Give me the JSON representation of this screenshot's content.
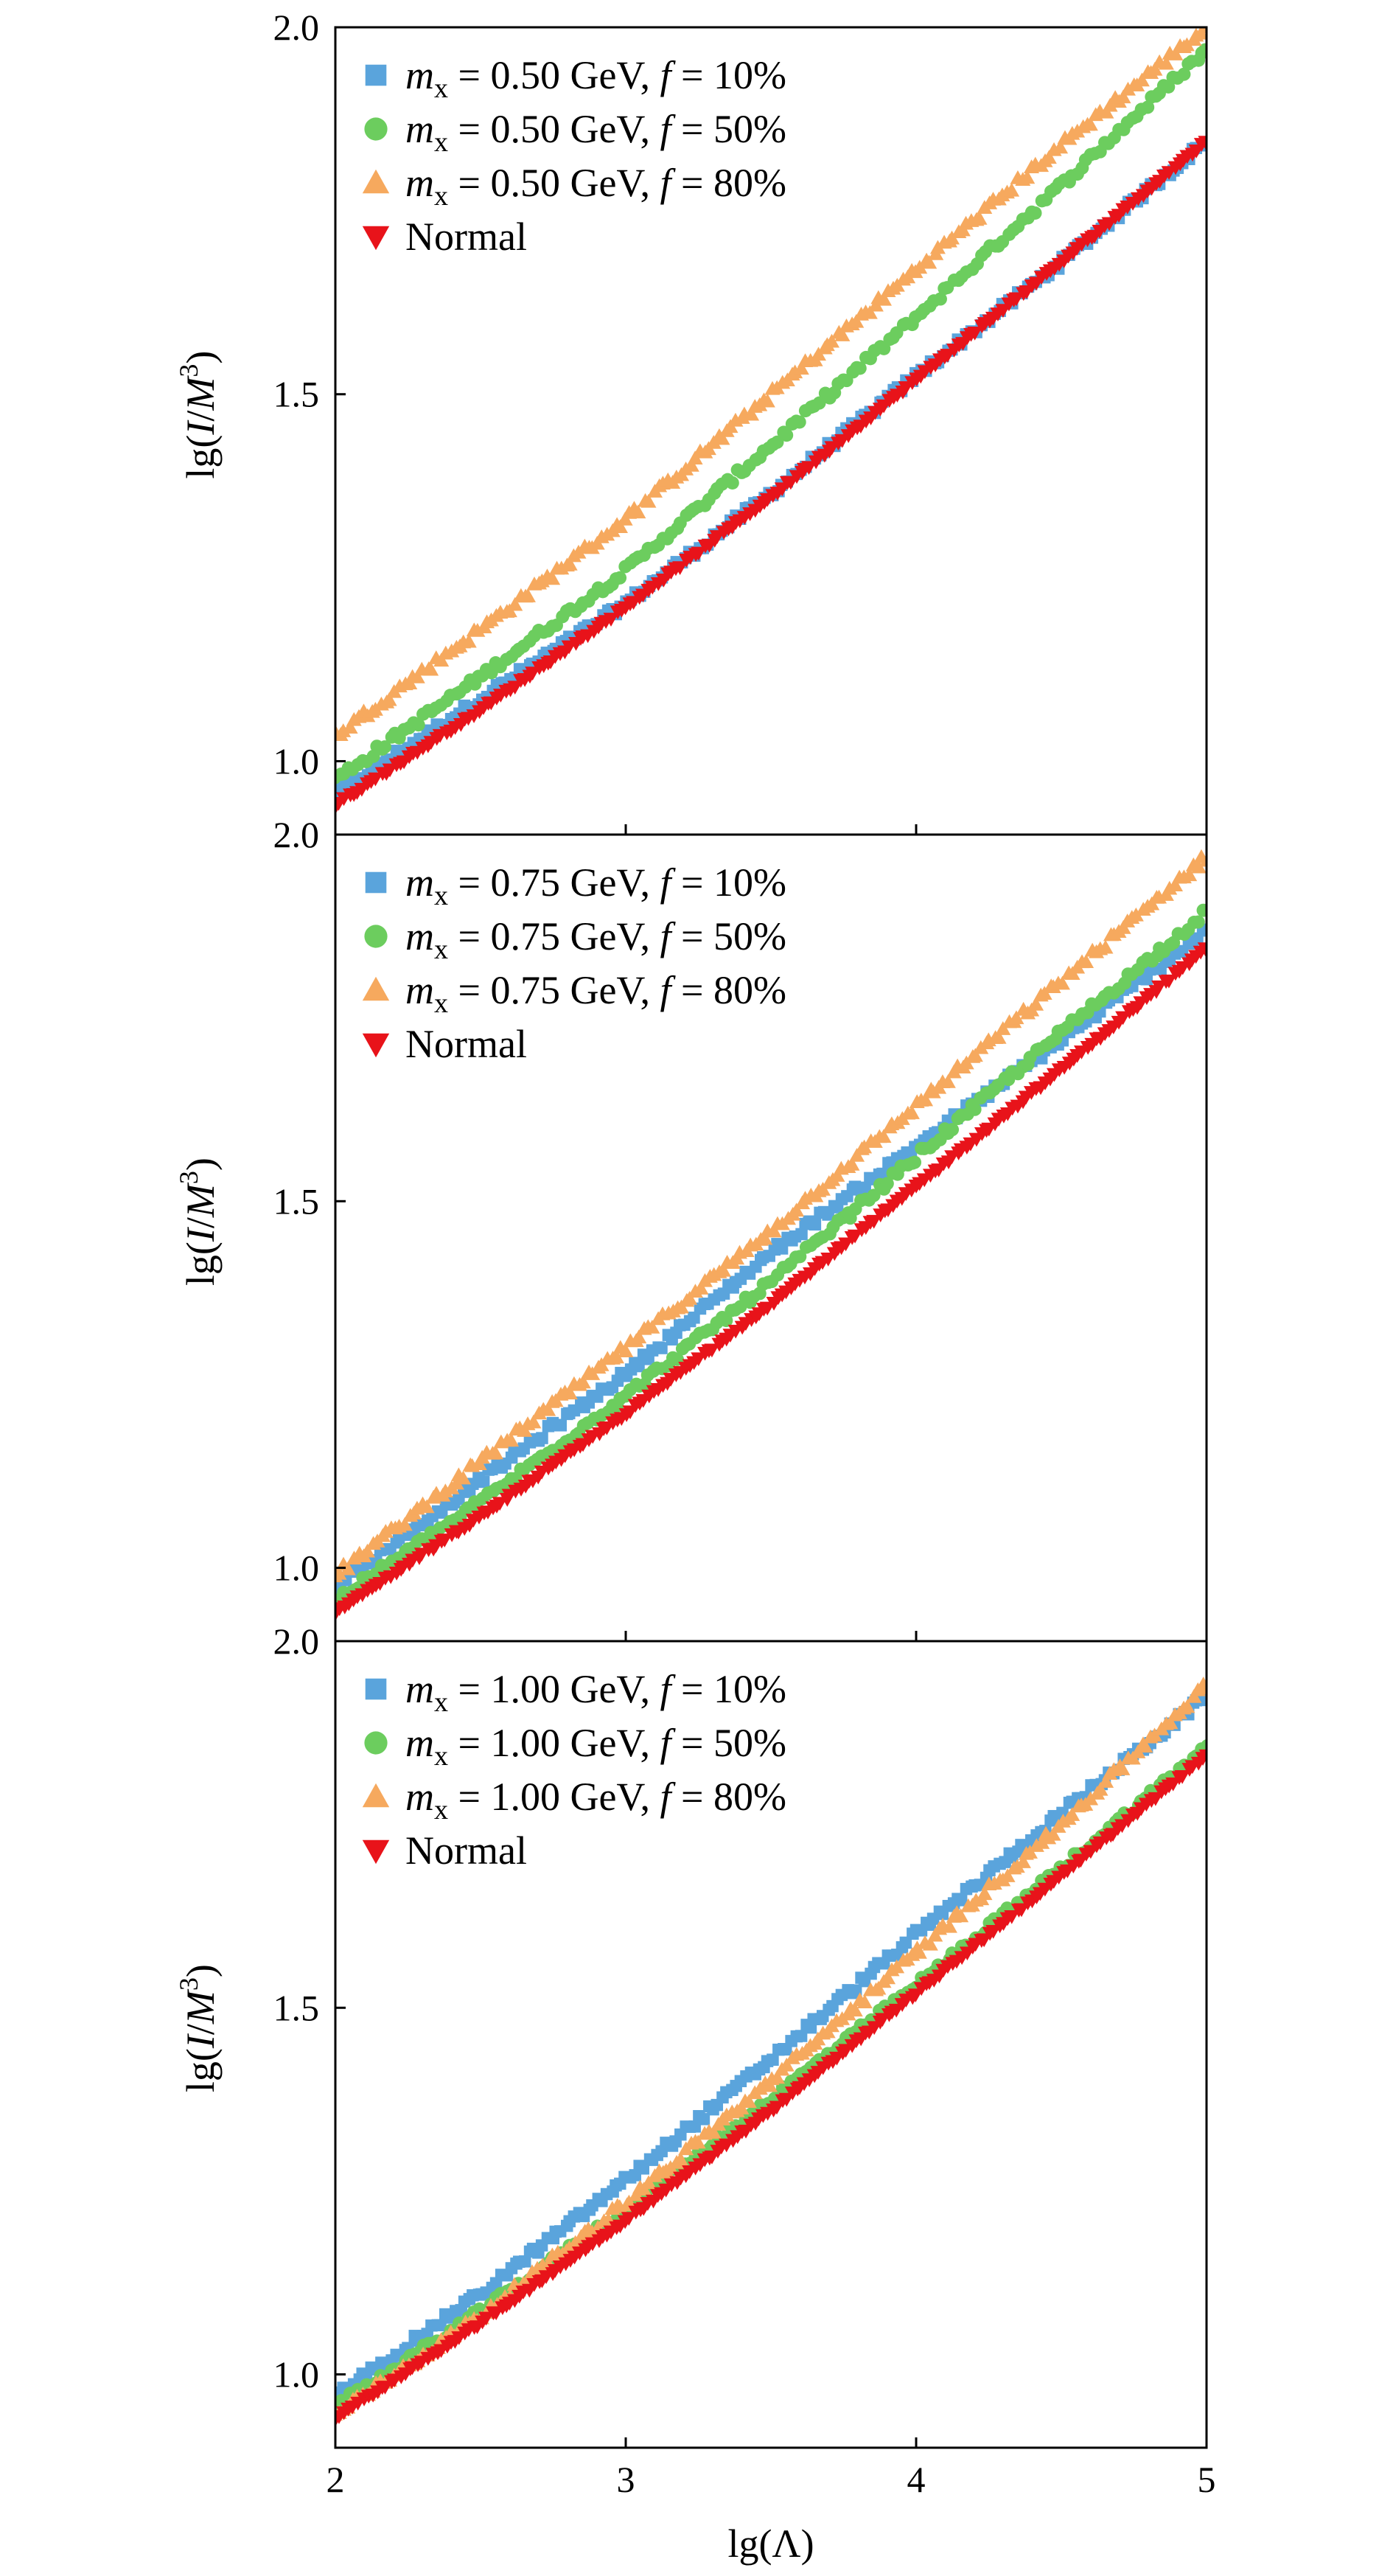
{
  "chart_data": [
    {
      "type": "scatter",
      "xlabel": "lg(Λ)",
      "ylabel_parts": {
        "pre": "lg(",
        "I": "I",
        "slash": "/",
        "M": "M",
        "exp": "3",
        "post": ")"
      },
      "xlim": [
        2,
        5
      ],
      "ylim": [
        0.9,
        2.0
      ],
      "xticks": [
        2,
        3,
        4,
        5
      ],
      "yticks": [
        1.0,
        1.5,
        2.0
      ],
      "xtick_labels": [
        "2",
        "3",
        "4",
        "5"
      ],
      "ytick_labels": [
        "1.0",
        "1.5",
        "2.0"
      ],
      "legend_position": "top-left",
      "series": [
        {
          "name": "m_x = 0.50 GeV, f = 10%",
          "legend": {
            "sym": "m",
            "sub": "x",
            "eq": " = 0.50 GeV, ",
            "f": "f",
            "pct": " = 10%"
          },
          "color": "#5aa4dc",
          "marker": "square",
          "x": [
            2.0,
            2.5,
            3.0,
            3.5,
            4.0,
            4.5,
            5.0
          ],
          "y": [
            0.955,
            1.085,
            1.215,
            1.365,
            1.525,
            1.68,
            1.845
          ]
        },
        {
          "name": "m_x = 0.50 GeV, f = 50%",
          "legend": {
            "sym": "m",
            "sub": "x",
            "eq": " = 0.50 GeV, ",
            "f": "f",
            "pct": " = 50%"
          },
          "color": "#6ccd5e",
          "marker": "circle",
          "x": [
            2.0,
            2.5,
            3.0,
            3.5,
            4.0,
            4.5,
            5.0
          ],
          "y": [
            0.975,
            1.115,
            1.26,
            1.43,
            1.605,
            1.785,
            1.97
          ]
        },
        {
          "name": "m_x = 0.50 GeV, f = 80%",
          "legend": {
            "sym": "m",
            "sub": "x",
            "eq": " = 0.50 GeV, ",
            "f": "f",
            "pct": " = 80%"
          },
          "color": "#f6a95e",
          "marker": "triangle-up",
          "x": [
            2.0,
            2.5,
            3.0,
            3.5,
            4.0,
            4.5,
            5.0
          ],
          "y": [
            1.035,
            1.18,
            1.33,
            1.5,
            1.67,
            1.84,
            2.0
          ]
        },
        {
          "name": "Normal",
          "legend": {
            "text": "Normal"
          },
          "color": "#e8131a",
          "marker": "triangle-down",
          "x": [
            2.0,
            2.5,
            3.0,
            3.5,
            4.0,
            4.5,
            5.0
          ],
          "y": [
            0.94,
            1.07,
            1.21,
            1.36,
            1.52,
            1.68,
            1.845
          ]
        }
      ]
    },
    {
      "type": "scatter",
      "xlabel": "lg(Λ)",
      "ylabel_parts": {
        "pre": "lg(",
        "I": "I",
        "slash": "/",
        "M": "M",
        "exp": "3",
        "post": ")"
      },
      "xlim": [
        2,
        5
      ],
      "ylim": [
        0.9,
        2.0
      ],
      "xticks": [
        2,
        3,
        4,
        5
      ],
      "yticks": [
        1.0,
        1.5,
        2.0
      ],
      "xtick_labels": [
        "2",
        "3",
        "4",
        "5"
      ],
      "ytick_labels": [
        "1.0",
        "1.5",
        "2.0"
      ],
      "legend_position": "top-left",
      "series": [
        {
          "name": "m_x = 0.75 GeV, f = 10%",
          "legend": {
            "sym": "m",
            "sub": "x",
            "eq": " = 0.75 GeV, ",
            "f": "f",
            "pct": " = 10%"
          },
          "color": "#5aa4dc",
          "marker": "square",
          "x": [
            2.0,
            2.5,
            3.0,
            3.5,
            4.0,
            4.5,
            5.0
          ],
          "y": [
            0.975,
            1.12,
            1.265,
            1.43,
            1.575,
            1.72,
            1.87
          ]
        },
        {
          "name": "m_x = 0.75 GeV, f = 50%",
          "legend": {
            "sym": "m",
            "sub": "x",
            "eq": " = 0.75 GeV, ",
            "f": "f",
            "pct": " = 50%"
          },
          "color": "#6ccd5e",
          "marker": "circle",
          "x": [
            2.0,
            2.5,
            3.0,
            3.5,
            4.0,
            4.5,
            5.0
          ],
          "y": [
            0.955,
            1.09,
            1.235,
            1.39,
            1.56,
            1.73,
            1.895
          ]
        },
        {
          "name": "m_x = 0.75 GeV, f = 80%",
          "legend": {
            "sym": "m",
            "sub": "x",
            "eq": " = 0.75 GeV, ",
            "f": "f",
            "pct": " = 80%"
          },
          "color": "#f6a95e",
          "marker": "triangle-up",
          "x": [
            2.0,
            2.5,
            3.0,
            3.5,
            4.0,
            4.5,
            5.0
          ],
          "y": [
            0.99,
            1.145,
            1.3,
            1.46,
            1.63,
            1.8,
            1.97
          ]
        },
        {
          "name": "Normal",
          "legend": {
            "text": "Normal"
          },
          "color": "#e8131a",
          "marker": "triangle-down",
          "x": [
            2.0,
            2.5,
            3.0,
            3.5,
            4.0,
            4.5,
            5.0
          ],
          "y": [
            0.94,
            1.07,
            1.21,
            1.36,
            1.52,
            1.68,
            1.845
          ]
        }
      ]
    },
    {
      "type": "scatter",
      "xlabel": "lg(Λ)",
      "ylabel_parts": {
        "pre": "lg(",
        "I": "I",
        "slash": "/",
        "M": "M",
        "exp": "3",
        "post": ")"
      },
      "xlim": [
        2,
        5
      ],
      "ylim": [
        0.9,
        2.0
      ],
      "xticks": [
        2,
        3,
        4,
        5
      ],
      "yticks": [
        1.0,
        1.5,
        2.0
      ],
      "xtick_labels": [
        "2",
        "3",
        "4",
        "5"
      ],
      "ytick_labels": [
        "1.0",
        "1.5",
        "2.0"
      ],
      "legend_position": "top-left",
      "series": [
        {
          "name": "m_x = 1.00 GeV, f = 10%",
          "legend": {
            "sym": "m",
            "sub": "x",
            "eq": " = 1.00 GeV, ",
            "f": "f",
            "pct": " = 10%"
          },
          "color": "#5aa4dc",
          "marker": "square",
          "x": [
            2.0,
            2.5,
            3.0,
            3.5,
            4.0,
            4.5,
            5.0
          ],
          "y": [
            0.97,
            1.11,
            1.265,
            1.43,
            1.6,
            1.765,
            1.925
          ]
        },
        {
          "name": "m_x = 1.00 GeV, f = 50%",
          "legend": {
            "sym": "m",
            "sub": "x",
            "eq": " = 1.00 GeV, ",
            "f": "f",
            "pct": " = 50%"
          },
          "color": "#6ccd5e",
          "marker": "circle",
          "x": [
            2.0,
            2.5,
            3.0,
            3.5,
            4.0,
            4.5,
            5.0
          ],
          "y": [
            0.955,
            1.085,
            1.225,
            1.375,
            1.53,
            1.69,
            1.855
          ]
        },
        {
          "name": "m_x = 1.00 GeV, f = 80%",
          "legend": {
            "sym": "m",
            "sub": "x",
            "eq": " = 1.00 GeV, ",
            "f": "f",
            "pct": " = 80%"
          },
          "color": "#f6a95e",
          "marker": "triangle-up",
          "x": [
            2.0,
            2.5,
            3.0,
            3.5,
            4.0,
            4.5,
            5.0
          ],
          "y": [
            0.945,
            1.08,
            1.235,
            1.4,
            1.575,
            1.75,
            1.94
          ]
        },
        {
          "name": "Normal",
          "legend": {
            "text": "Normal"
          },
          "color": "#e8131a",
          "marker": "triangle-down",
          "x": [
            2.0,
            2.5,
            3.0,
            3.5,
            4.0,
            4.5,
            5.0
          ],
          "y": [
            0.94,
            1.07,
            1.21,
            1.36,
            1.52,
            1.68,
            1.845
          ]
        }
      ]
    }
  ]
}
